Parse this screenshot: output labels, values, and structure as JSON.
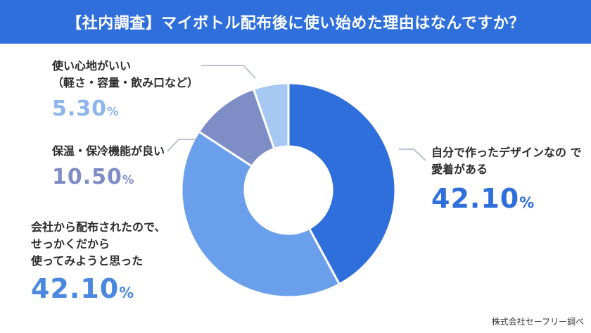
{
  "title": "【社内調査】マイボトル配布後に使い始めた理由はなんですか？",
  "source": "株式会社セーフリー調べ",
  "colors": {
    "title_bg": "#2f6fdc",
    "slice_colors": [
      "#2f6fdc",
      "#6a9fec",
      "#7f8dc6",
      "#a8c8f4"
    ]
  },
  "chart_data": {
    "type": "pie",
    "donut": true,
    "series": [
      {
        "values": [
          42.1,
          42.1,
          10.5,
          5.3
        ]
      }
    ],
    "categories": [
      "自分で作ったデザインなので愛着がある",
      "会社から配布されたので、せっかくだから使ってみようと思った",
      "保温・保冷機能が良い",
      "使い心地がいい（軽さ・容量・飲み口など）"
    ],
    "labels": [
      {
        "lines": [
          "自分で作ったデザインなの で",
          "愛着がある"
        ],
        "value": "42.10",
        "unit": "%"
      },
      {
        "lines": [
          "会社から配布されたので、",
          "せっかくだから",
          "使ってみようと思った"
        ],
        "value": "42.10",
        "unit": "%"
      },
      {
        "lines": [
          "保温・保冷機能が良い"
        ],
        "value": "10.50",
        "unit": "%"
      },
      {
        "lines": [
          "使い心地がいい",
          "（軽さ・容量・飲み口など）"
        ],
        "value": "5.30",
        "unit": "%"
      }
    ]
  }
}
